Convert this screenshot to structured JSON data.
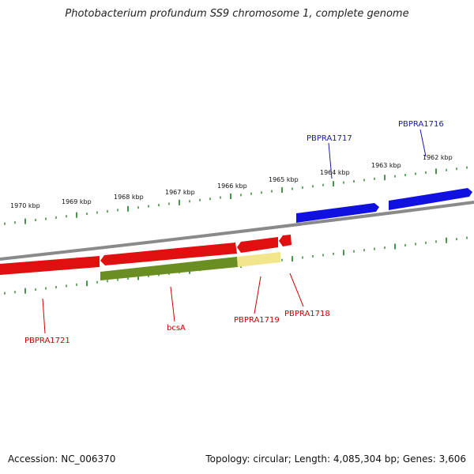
{
  "title": "Photobacterium profundum SS9 chromosome 1, complete genome",
  "accession": "Accession: NC_006370",
  "summary": "Topology: circular; Length: 4,085,304 bp; Genes: 3,606",
  "colors": {
    "backbone": "#8a8a8a",
    "forward_gene": "#1010e0",
    "reverse_gene": "#e01010",
    "reverse_cds_feature": "#6b8e23",
    "reverse_other_feature": "#f2e68c",
    "tick": "#1a7a1a",
    "forward_label": "#1a1aa0",
    "reverse_label": "#cc0000"
  },
  "scale": {
    "labels": [
      "1970 kbp",
      "1969 kbp",
      "1968 kbp",
      "1967 kbp",
      "1966 kbp",
      "1965 kbp",
      "1964 kbp",
      "1963 kbp",
      "1962 kbp"
    ]
  },
  "genes": {
    "forward": [
      {
        "name": "PBPRA1717",
        "strand": "+"
      },
      {
        "name": "PBPRA1716",
        "strand": "+"
      }
    ],
    "reverse": [
      {
        "name": "PBPRA1721",
        "strand": "-"
      },
      {
        "name": "bcsA",
        "strand": "-"
      },
      {
        "name": "PBPRA1719",
        "strand": "-"
      },
      {
        "name": "PBPRA1718",
        "strand": "-"
      }
    ]
  }
}
